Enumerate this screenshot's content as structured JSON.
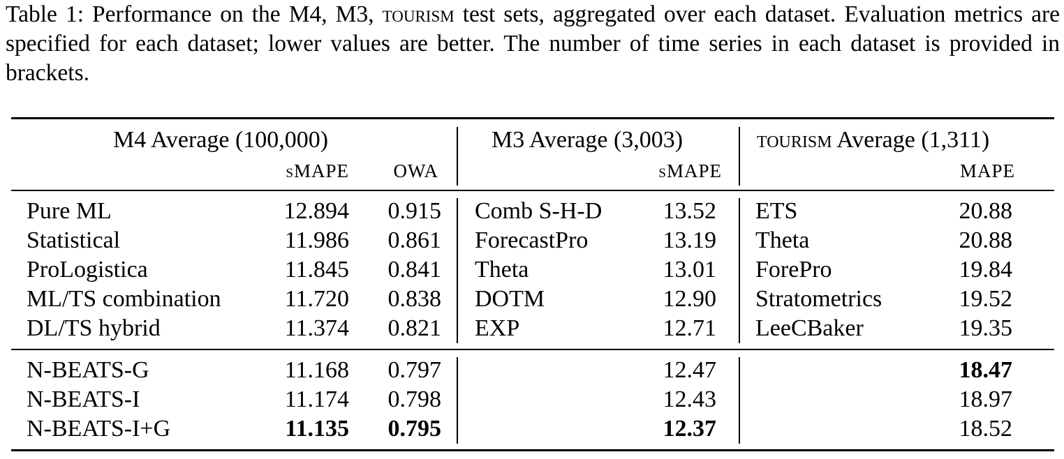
{
  "caption": {
    "prefix": "Table 1: Performance on the M4, M3, ",
    "tourism": "tourism",
    "suffix": " test sets, aggregated over each dataset. Evaluation metrics are specified for each dataset; lower values are better. The number of time series in each dataset is provided in brackets."
  },
  "headers": {
    "m4": "M4 Average (100,000)",
    "m3": "M3 Average (3,003)",
    "tourism_sc": "tourism",
    "tourism_rest": " Average (1,311)",
    "m4_smape": "sMAPE",
    "m4_owa": "OWA",
    "m3_smape": "sMAPE",
    "tourism_mape": "MAPE"
  },
  "baseline_rows": [
    {
      "m4_name": "Pure ML",
      "m4_smape": "12.894",
      "m4_owa": "0.915",
      "m3_name": "Comb S-H-D",
      "m3_smape": "13.52",
      "t_name": "ETS",
      "t_mape": "20.88"
    },
    {
      "m4_name": "Statistical",
      "m4_smape": "11.986",
      "m4_owa": "0.861",
      "m3_name": "ForecastPro",
      "m3_smape": "13.19",
      "t_name": "Theta",
      "t_mape": "20.88"
    },
    {
      "m4_name": "ProLogistica",
      "m4_smape": "11.845",
      "m4_owa": "0.841",
      "m3_name": "Theta",
      "m3_smape": "13.01",
      "t_name": "ForePro",
      "t_mape": "19.84"
    },
    {
      "m4_name": "ML/TS combination",
      "m4_smape": "11.720",
      "m4_owa": "0.838",
      "m3_name": "DOTM",
      "m3_smape": "12.90",
      "t_name": "Stratometrics",
      "t_mape": "19.52"
    },
    {
      "m4_name": "DL/TS hybrid",
      "m4_smape": "11.374",
      "m4_owa": "0.821",
      "m3_name": "EXP",
      "m3_smape": "12.71",
      "t_name": "LeeCBaker",
      "t_mape": "19.35"
    }
  ],
  "nbeats_rows": [
    {
      "name": "N-BEATS-G",
      "m4_smape": "11.168",
      "m4_owa": "0.797",
      "m3_smape": "12.47",
      "t_mape": "18.47"
    },
    {
      "name": "N-BEATS-I",
      "m4_smape": "11.174",
      "m4_owa": "0.798",
      "m3_smape": "12.43",
      "t_mape": "18.97"
    },
    {
      "name": "N-BEATS-I+G",
      "m4_smape": "11.135",
      "m4_owa": "0.795",
      "m3_smape": "12.37",
      "t_mape": "18.52"
    }
  ]
}
